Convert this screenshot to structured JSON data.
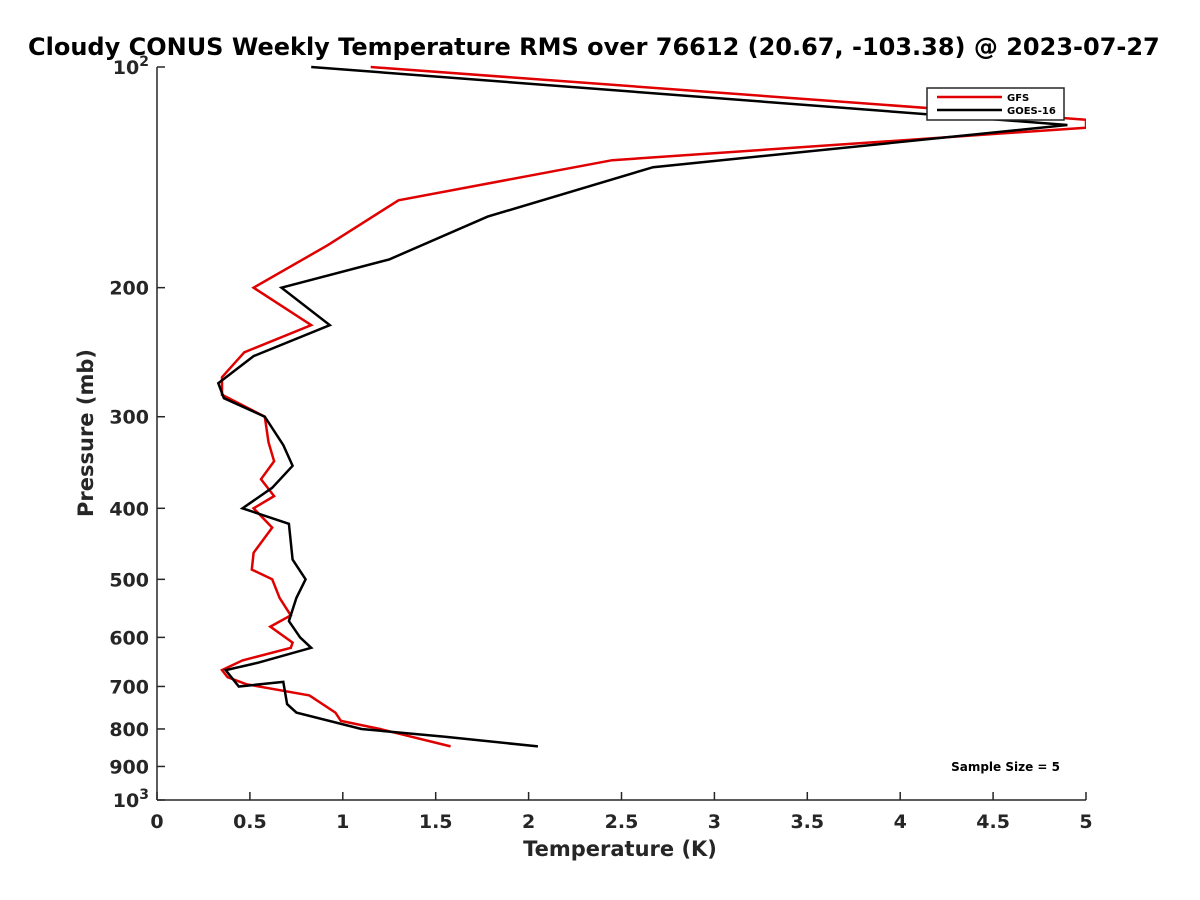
{
  "chart_data": {
    "type": "line",
    "title": "Cloudy CONUS Weekly Temperature RMS over 76612 (20.67, -103.38) @ 2023-07-27",
    "xlabel": "Temperature (K)",
    "ylabel": "Pressure (mb)",
    "xlim": [
      0,
      5
    ],
    "ylim": [
      100,
      1000
    ],
    "yscale": "log",
    "yreversed": true,
    "xticks": [
      0,
      0.5,
      1,
      1.5,
      2,
      2.5,
      3,
      3.5,
      4,
      4.5,
      5
    ],
    "xtick_labels": [
      "0",
      "0.5",
      "1",
      "1.5",
      "2",
      "2.5",
      "3",
      "3.5",
      "4",
      "4.5",
      "5"
    ],
    "yticks": [
      100,
      200,
      300,
      400,
      500,
      600,
      700,
      800,
      900,
      1000
    ],
    "ytick_labels": [
      "10^2",
      "200",
      "300",
      "400",
      "500",
      "600",
      "700",
      "800",
      "900",
      "10^3"
    ],
    "legend_position": "top-right",
    "annotation": "Sample Size = 5",
    "series": [
      {
        "name": "GFS",
        "color": "#e00000",
        "points": [
          [
            1.15,
            100
          ],
          [
            5.0,
            118
          ],
          [
            5.0,
            121
          ],
          [
            2.45,
            134
          ],
          [
            1.3,
            152
          ],
          [
            0.92,
            175
          ],
          [
            0.52,
            200
          ],
          [
            0.83,
            225
          ],
          [
            0.47,
            245
          ],
          [
            0.35,
            265
          ],
          [
            0.35,
            280
          ],
          [
            0.58,
            300
          ],
          [
            0.6,
            325
          ],
          [
            0.63,
            345
          ],
          [
            0.56,
            365
          ],
          [
            0.63,
            385
          ],
          [
            0.52,
            400
          ],
          [
            0.62,
            425
          ],
          [
            0.52,
            460
          ],
          [
            0.51,
            485
          ],
          [
            0.62,
            500
          ],
          [
            0.66,
            530
          ],
          [
            0.72,
            560
          ],
          [
            0.61,
            580
          ],
          [
            0.73,
            610
          ],
          [
            0.72,
            620
          ],
          [
            0.46,
            645
          ],
          [
            0.35,
            665
          ],
          [
            0.38,
            680
          ],
          [
            0.48,
            695
          ],
          [
            0.82,
            720
          ],
          [
            0.96,
            760
          ],
          [
            0.99,
            780
          ],
          [
            1.2,
            800
          ],
          [
            1.58,
            845
          ]
        ]
      },
      {
        "name": "GOES-16",
        "color": "#000000",
        "points": [
          [
            0.83,
            100
          ],
          [
            4.9,
            120
          ],
          [
            2.67,
            137
          ],
          [
            1.78,
            160
          ],
          [
            1.25,
            183
          ],
          [
            0.67,
            200
          ],
          [
            0.93,
            225
          ],
          [
            0.52,
            248
          ],
          [
            0.33,
            270
          ],
          [
            0.36,
            283
          ],
          [
            0.58,
            300
          ],
          [
            0.68,
            328
          ],
          [
            0.73,
            350
          ],
          [
            0.62,
            375
          ],
          [
            0.46,
            400
          ],
          [
            0.71,
            420
          ],
          [
            0.73,
            470
          ],
          [
            0.8,
            500
          ],
          [
            0.75,
            530
          ],
          [
            0.71,
            570
          ],
          [
            0.77,
            600
          ],
          [
            0.83,
            620
          ],
          [
            0.54,
            650
          ],
          [
            0.37,
            665
          ],
          [
            0.44,
            700
          ],
          [
            0.68,
            690
          ],
          [
            0.7,
            740
          ],
          [
            0.75,
            760
          ],
          [
            1.1,
            800
          ],
          [
            1.55,
            820
          ],
          [
            2.05,
            845
          ]
        ]
      }
    ]
  }
}
